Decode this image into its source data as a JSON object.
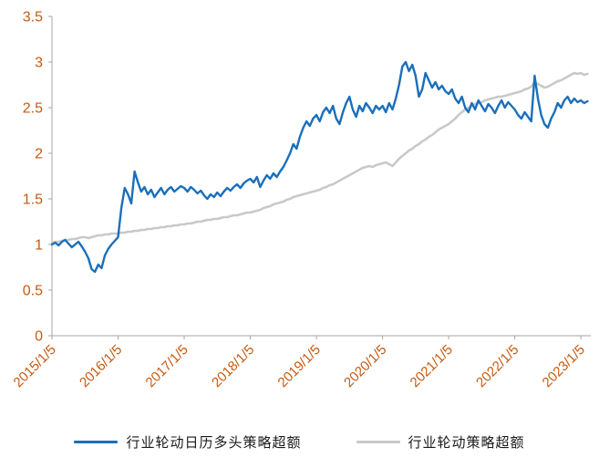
{
  "colors": {
    "axis": "#a6a6a6",
    "tick_label": "#c55a11",
    "legend_text": "#1a1a1a",
    "background": "#ffffff"
  },
  "chart_data": {
    "type": "line",
    "title": "",
    "xlabel": "",
    "ylabel": "",
    "legend_position": "bottom",
    "grid": false,
    "x_axis": {
      "min": 2015.0,
      "max": 2023.15,
      "tick_years": [
        2015.0,
        2016.0,
        2017.0,
        2018.0,
        2019.0,
        2020.0,
        2021.0,
        2022.0,
        2023.0
      ],
      "tick_labels": [
        "2015/1/5",
        "2016/1/5",
        "2017/1/5",
        "2018/1/5",
        "2019/1/5",
        "2020/1/5",
        "2021/1/5",
        "2022/1/5",
        "2023/1/5"
      ]
    },
    "y_axis": {
      "min": 0,
      "max": 3.5,
      "tick_values": [
        0,
        0.5,
        1,
        1.5,
        2,
        2.5,
        3,
        3.5
      ],
      "tick_labels": [
        "0",
        "0.5",
        "1",
        "1.5",
        "2",
        "2.5",
        "3",
        "3.5"
      ]
    },
    "series": [
      {
        "name": "行业轮动日历多头策略超额",
        "color": "#1a6fba",
        "width": 2.4,
        "x0": 2015.0,
        "dx": 0.05,
        "values": [
          1.0,
          1.02,
          0.99,
          1.03,
          1.05,
          1.01,
          0.97,
          1.0,
          1.03,
          0.98,
          0.92,
          0.85,
          0.73,
          0.7,
          0.78,
          0.74,
          0.88,
          0.95,
          1.0,
          1.04,
          1.08,
          1.4,
          1.62,
          1.55,
          1.45,
          1.8,
          1.68,
          1.58,
          1.63,
          1.55,
          1.6,
          1.52,
          1.57,
          1.62,
          1.55,
          1.6,
          1.63,
          1.58,
          1.61,
          1.64,
          1.62,
          1.58,
          1.63,
          1.6,
          1.56,
          1.59,
          1.54,
          1.5,
          1.55,
          1.52,
          1.57,
          1.53,
          1.58,
          1.62,
          1.59,
          1.63,
          1.66,
          1.62,
          1.67,
          1.7,
          1.72,
          1.68,
          1.74,
          1.63,
          1.7,
          1.76,
          1.72,
          1.78,
          1.74,
          1.8,
          1.85,
          1.92,
          2.0,
          2.1,
          2.05,
          2.18,
          2.28,
          2.35,
          2.3,
          2.38,
          2.42,
          2.35,
          2.45,
          2.5,
          2.44,
          2.52,
          2.38,
          2.32,
          2.45,
          2.55,
          2.62,
          2.48,
          2.4,
          2.52,
          2.46,
          2.55,
          2.5,
          2.44,
          2.52,
          2.48,
          2.52,
          2.45,
          2.55,
          2.48,
          2.6,
          2.75,
          2.95,
          3.0,
          2.9,
          2.97,
          2.85,
          2.62,
          2.7,
          2.88,
          2.8,
          2.72,
          2.78,
          2.7,
          2.74,
          2.68,
          2.65,
          2.7,
          2.6,
          2.55,
          2.62,
          2.5,
          2.45,
          2.55,
          2.48,
          2.58,
          2.52,
          2.46,
          2.54,
          2.5,
          2.44,
          2.52,
          2.58,
          2.5,
          2.56,
          2.52,
          2.48,
          2.42,
          2.38,
          2.45,
          2.4,
          2.35,
          2.85,
          2.6,
          2.42,
          2.32,
          2.28,
          2.38,
          2.45,
          2.55,
          2.5,
          2.58,
          2.62,
          2.55,
          2.6,
          2.56,
          2.58,
          2.55,
          2.57
        ]
      },
      {
        "name": "行业轮动策略超额",
        "color": "#c9c9c9",
        "width": 2.6,
        "x0": 2015.0,
        "dx": 0.05,
        "values": [
          1.02,
          1.03,
          1.03,
          1.04,
          1.05,
          1.05,
          1.06,
          1.06,
          1.07,
          1.08,
          1.08,
          1.07,
          1.08,
          1.09,
          1.1,
          1.1,
          1.11,
          1.11,
          1.12,
          1.12,
          1.12,
          1.13,
          1.13,
          1.14,
          1.14,
          1.15,
          1.15,
          1.16,
          1.16,
          1.17,
          1.17,
          1.18,
          1.18,
          1.19,
          1.19,
          1.2,
          1.2,
          1.21,
          1.21,
          1.22,
          1.22,
          1.23,
          1.23,
          1.24,
          1.25,
          1.25,
          1.26,
          1.27,
          1.27,
          1.28,
          1.28,
          1.29,
          1.3,
          1.3,
          1.31,
          1.32,
          1.32,
          1.33,
          1.34,
          1.35,
          1.35,
          1.36,
          1.37,
          1.38,
          1.4,
          1.41,
          1.42,
          1.44,
          1.45,
          1.46,
          1.47,
          1.49,
          1.5,
          1.52,
          1.53,
          1.54,
          1.55,
          1.56,
          1.57,
          1.58,
          1.59,
          1.6,
          1.62,
          1.63,
          1.65,
          1.66,
          1.68,
          1.7,
          1.72,
          1.74,
          1.76,
          1.78,
          1.8,
          1.82,
          1.84,
          1.85,
          1.86,
          1.85,
          1.87,
          1.88,
          1.89,
          1.9,
          1.88,
          1.86,
          1.9,
          1.94,
          1.97,
          2.0,
          2.03,
          2.05,
          2.08,
          2.1,
          2.13,
          2.15,
          2.18,
          2.2,
          2.23,
          2.26,
          2.28,
          2.3,
          2.32,
          2.35,
          2.38,
          2.42,
          2.45,
          2.48,
          2.5,
          2.52,
          2.54,
          2.55,
          2.56,
          2.58,
          2.59,
          2.6,
          2.61,
          2.62,
          2.62,
          2.63,
          2.64,
          2.65,
          2.66,
          2.67,
          2.68,
          2.7,
          2.71,
          2.73,
          2.78,
          2.76,
          2.74,
          2.72,
          2.73,
          2.75,
          2.77,
          2.79,
          2.8,
          2.82,
          2.84,
          2.86,
          2.88,
          2.87,
          2.88,
          2.86,
          2.87
        ]
      }
    ]
  }
}
